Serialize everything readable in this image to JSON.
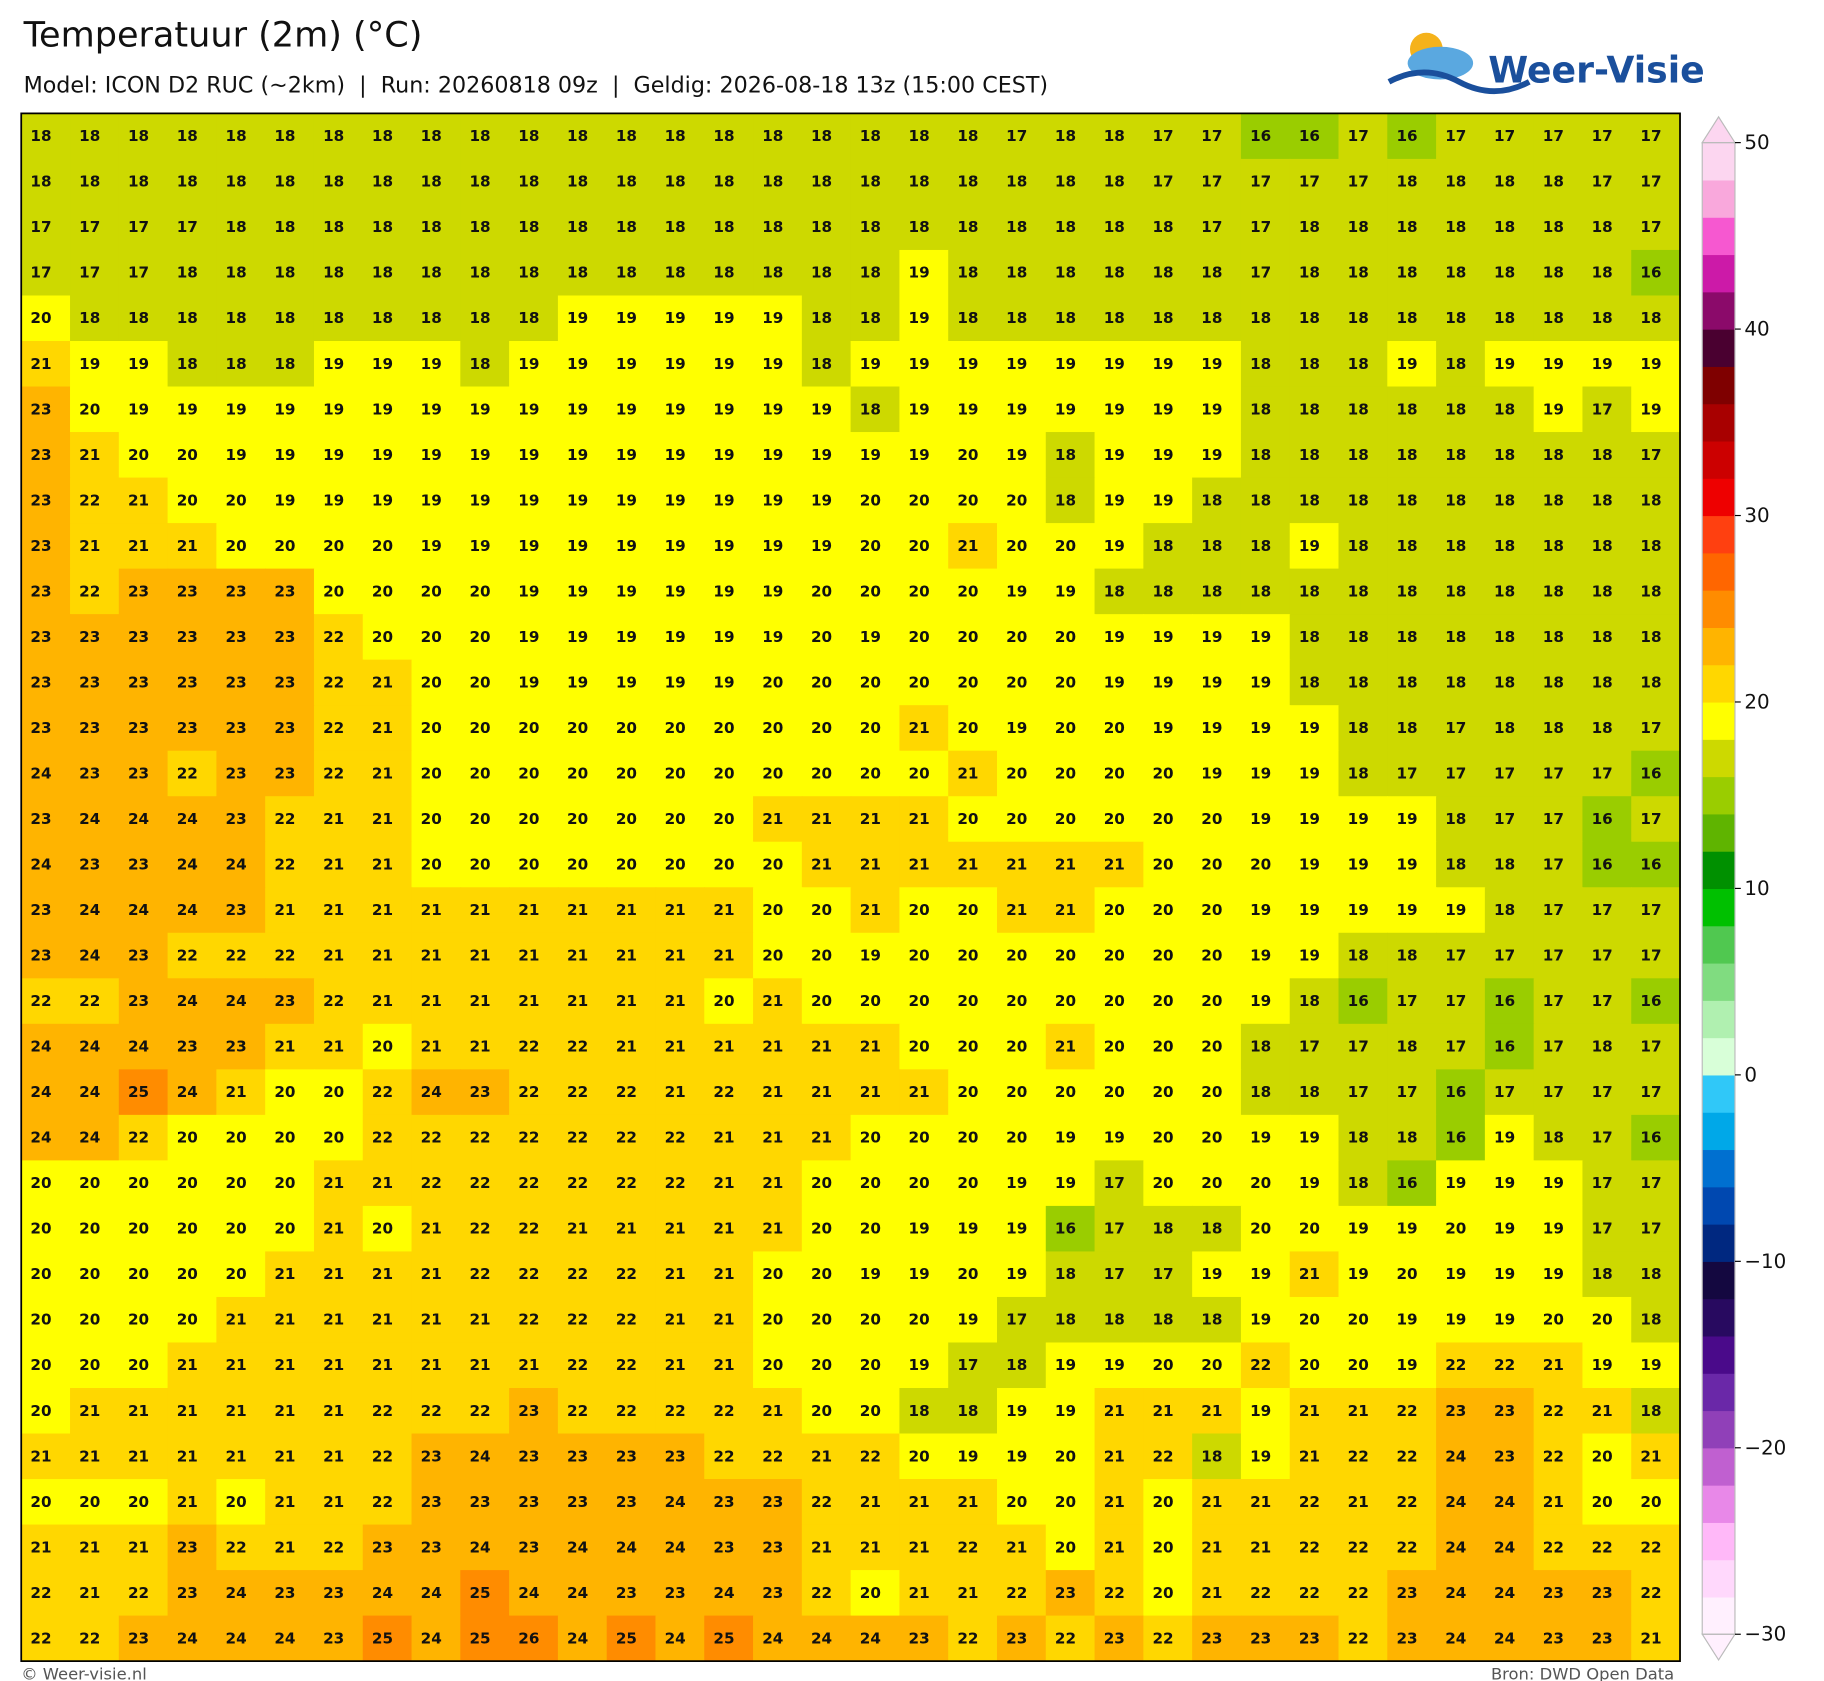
{
  "map": {
    "title": "Temperatuur (2m) (°C)",
    "subtitle": "Model: ICON D2 RUC (~2km)  |  Run: 20260818 09z  |  Geldig: 2026-08-18 13z (15:00 CEST)",
    "logo": "Weer-Visie",
    "footer_left": "© Weer-visie.nl",
    "footer_right": "Bron: DWD Open Data",
    "colorbar": {
      "ylim": [
        -30,
        50
      ],
      "yticks": [
        {
          "value": -30,
          "label": "−30"
        },
        {
          "value": -20,
          "label": "−20"
        },
        {
          "value": -10,
          "label": "−10"
        },
        0,
        10,
        20,
        30,
        40,
        50
      ],
      "colors": [
        "#fff0fe",
        "#ffd8fc",
        "#ffb8f8",
        "#e888e8",
        "#c060d0",
        "#9040b8",
        "#6a28a8",
        "#4a0a8a",
        "#280a60",
        "#140840",
        "#002880",
        "#0048b0",
        "#0070d0",
        "#00a8e8",
        "#30c8f8",
        "#d8ffd8",
        "#b0f0b0",
        "#80dc80",
        "#50c850",
        "#00c000",
        "#009000",
        "#5fb400",
        "#9acd00",
        "#cdd900",
        "#ffff00",
        "#ffd700",
        "#ffb400",
        "#ff8c00",
        "#ff6600",
        "#ff4010",
        "#ee0000",
        "#cc0000",
        "#a80000",
        "#7f0000",
        "#4a0030",
        "#8b0a6a",
        "#cc1aa8",
        "#f658d0",
        "#f9a8dc",
        "#fcd6f0"
      ]
    },
    "grid": [
      [
        18,
        18,
        18,
        18,
        18,
        18,
        18,
        18,
        18,
        18,
        18,
        18,
        18,
        18,
        18,
        18,
        18,
        18,
        18,
        18,
        17,
        18,
        18,
        17,
        17,
        16,
        16,
        17,
        16,
        17,
        17,
        17,
        17,
        17
      ],
      [
        18,
        18,
        18,
        18,
        18,
        18,
        18,
        18,
        18,
        18,
        18,
        18,
        18,
        18,
        18,
        18,
        18,
        18,
        18,
        18,
        18,
        18,
        18,
        17,
        17,
        17,
        17,
        17,
        18,
        18,
        18,
        18,
        17,
        17
      ],
      [
        17,
        17,
        17,
        17,
        18,
        18,
        18,
        18,
        18,
        18,
        18,
        18,
        18,
        18,
        18,
        18,
        18,
        18,
        18,
        18,
        18,
        18,
        18,
        18,
        17,
        17,
        18,
        18,
        18,
        18,
        18,
        18,
        18,
        17
      ],
      [
        17,
        17,
        17,
        18,
        18,
        18,
        18,
        18,
        18,
        18,
        18,
        18,
        18,
        18,
        18,
        18,
        18,
        18,
        19,
        18,
        18,
        18,
        18,
        18,
        18,
        17,
        18,
        18,
        18,
        18,
        18,
        18,
        18,
        16
      ],
      [
        20,
        18,
        18,
        18,
        18,
        18,
        18,
        18,
        18,
        18,
        18,
        19,
        19,
        19,
        19,
        19,
        18,
        18,
        19,
        18,
        18,
        18,
        18,
        18,
        18,
        18,
        18,
        18,
        18,
        18,
        18,
        18,
        18,
        18
      ],
      [
        21,
        19,
        19,
        18,
        18,
        18,
        19,
        19,
        19,
        18,
        19,
        19,
        19,
        19,
        19,
        19,
        18,
        19,
        19,
        19,
        19,
        19,
        19,
        19,
        19,
        18,
        18,
        18,
        19,
        18,
        19,
        19,
        19,
        19
      ],
      [
        23,
        20,
        19,
        19,
        19,
        19,
        19,
        19,
        19,
        19,
        19,
        19,
        19,
        19,
        19,
        19,
        19,
        18,
        19,
        19,
        19,
        19,
        19,
        19,
        19,
        18,
        18,
        18,
        18,
        18,
        18,
        19,
        17,
        19
      ],
      [
        23,
        21,
        20,
        20,
        19,
        19,
        19,
        19,
        19,
        19,
        19,
        19,
        19,
        19,
        19,
        19,
        19,
        19,
        19,
        20,
        19,
        18,
        19,
        19,
        19,
        18,
        18,
        18,
        18,
        18,
        18,
        18,
        18,
        17
      ],
      [
        23,
        22,
        21,
        20,
        20,
        19,
        19,
        19,
        19,
        19,
        19,
        19,
        19,
        19,
        19,
        19,
        19,
        20,
        20,
        20,
        20,
        18,
        19,
        19,
        18,
        18,
        18,
        18,
        18,
        18,
        18,
        18,
        18,
        18
      ],
      [
        23,
        21,
        21,
        21,
        20,
        20,
        20,
        20,
        19,
        19,
        19,
        19,
        19,
        19,
        19,
        19,
        19,
        20,
        20,
        21,
        20,
        20,
        19,
        18,
        18,
        18,
        19,
        18,
        18,
        18,
        18,
        18,
        18,
        18
      ],
      [
        23,
        22,
        23,
        23,
        23,
        23,
        20,
        20,
        20,
        20,
        19,
        19,
        19,
        19,
        19,
        19,
        20,
        20,
        20,
        20,
        19,
        19,
        18,
        18,
        18,
        18,
        18,
        18,
        18,
        18,
        18,
        18,
        18,
        18
      ],
      [
        23,
        23,
        23,
        23,
        23,
        23,
        22,
        20,
        20,
        20,
        19,
        19,
        19,
        19,
        19,
        19,
        20,
        19,
        20,
        20,
        20,
        20,
        19,
        19,
        19,
        19,
        18,
        18,
        18,
        18,
        18,
        18,
        18,
        18
      ],
      [
        23,
        23,
        23,
        23,
        23,
        23,
        22,
        21,
        20,
        20,
        19,
        19,
        19,
        19,
        19,
        20,
        20,
        20,
        20,
        20,
        20,
        20,
        19,
        19,
        19,
        19,
        18,
        18,
        18,
        18,
        18,
        18,
        18,
        18
      ],
      [
        23,
        23,
        23,
        23,
        23,
        23,
        22,
        21,
        20,
        20,
        20,
        20,
        20,
        20,
        20,
        20,
        20,
        20,
        21,
        20,
        19,
        20,
        20,
        19,
        19,
        19,
        19,
        18,
        18,
        17,
        18,
        18,
        18,
        17
      ],
      [
        24,
        23,
        23,
        22,
        23,
        23,
        22,
        21,
        20,
        20,
        20,
        20,
        20,
        20,
        20,
        20,
        20,
        20,
        20,
        21,
        20,
        20,
        20,
        20,
        19,
        19,
        19,
        18,
        17,
        17,
        17,
        17,
        17,
        16
      ],
      [
        23,
        24,
        24,
        24,
        23,
        22,
        21,
        21,
        20,
        20,
        20,
        20,
        20,
        20,
        20,
        21,
        21,
        21,
        21,
        20,
        20,
        20,
        20,
        20,
        20,
        19,
        19,
        19,
        19,
        18,
        17,
        17,
        16,
        17
      ],
      [
        24,
        23,
        23,
        24,
        24,
        22,
        21,
        21,
        20,
        20,
        20,
        20,
        20,
        20,
        20,
        20,
        21,
        21,
        21,
        21,
        21,
        21,
        21,
        20,
        20,
        20,
        19,
        19,
        19,
        18,
        18,
        17,
        16,
        16
      ],
      [
        23,
        24,
        24,
        24,
        23,
        21,
        21,
        21,
        21,
        21,
        21,
        21,
        21,
        21,
        21,
        20,
        20,
        21,
        20,
        20,
        21,
        21,
        20,
        20,
        20,
        19,
        19,
        19,
        19,
        19,
        18,
        17,
        17,
        17
      ],
      [
        23,
        24,
        23,
        22,
        22,
        22,
        21,
        21,
        21,
        21,
        21,
        21,
        21,
        21,
        21,
        20,
        20,
        19,
        20,
        20,
        20,
        20,
        20,
        20,
        20,
        19,
        19,
        18,
        18,
        17,
        17,
        17,
        17,
        17
      ],
      [
        22,
        22,
        23,
        24,
        24,
        23,
        22,
        21,
        21,
        21,
        21,
        21,
        21,
        21,
        20,
        21,
        20,
        20,
        20,
        20,
        20,
        20,
        20,
        20,
        20,
        19,
        18,
        16,
        17,
        17,
        16,
        17,
        17,
        16
      ],
      [
        24,
        24,
        24,
        23,
        23,
        21,
        21,
        20,
        21,
        21,
        22,
        22,
        21,
        21,
        21,
        21,
        21,
        21,
        20,
        20,
        20,
        21,
        20,
        20,
        20,
        18,
        17,
        17,
        18,
        17,
        16,
        17,
        18,
        17
      ],
      [
        24,
        24,
        25,
        24,
        21,
        20,
        20,
        22,
        24,
        23,
        22,
        22,
        22,
        21,
        22,
        21,
        21,
        21,
        21,
        20,
        20,
        20,
        20,
        20,
        20,
        18,
        18,
        17,
        17,
        16,
        17,
        17,
        17,
        17
      ],
      [
        24,
        24,
        22,
        20,
        20,
        20,
        20,
        22,
        22,
        22,
        22,
        22,
        22,
        22,
        21,
        21,
        21,
        20,
        20,
        20,
        20,
        19,
        19,
        20,
        20,
        19,
        19,
        18,
        18,
        16,
        19,
        18,
        17,
        16
      ],
      [
        20,
        20,
        20,
        20,
        20,
        20,
        21,
        21,
        22,
        22,
        22,
        22,
        22,
        22,
        21,
        21,
        20,
        20,
        20,
        20,
        19,
        19,
        17,
        20,
        20,
        20,
        19,
        18,
        16,
        19,
        19,
        19,
        17,
        17
      ],
      [
        20,
        20,
        20,
        20,
        20,
        20,
        21,
        20,
        21,
        22,
        22,
        21,
        21,
        21,
        21,
        21,
        20,
        20,
        19,
        19,
        19,
        16,
        17,
        18,
        18,
        20,
        20,
        19,
        19,
        20,
        19,
        19,
        17,
        17
      ],
      [
        20,
        20,
        20,
        20,
        20,
        21,
        21,
        21,
        21,
        22,
        22,
        22,
        22,
        21,
        21,
        20,
        20,
        19,
        19,
        20,
        19,
        18,
        17,
        17,
        19,
        19,
        21,
        19,
        20,
        19,
        19,
        19,
        18,
        18
      ],
      [
        20,
        20,
        20,
        20,
        21,
        21,
        21,
        21,
        21,
        21,
        22,
        22,
        22,
        21,
        21,
        20,
        20,
        20,
        20,
        19,
        17,
        18,
        18,
        18,
        18,
        19,
        20,
        20,
        19,
        19,
        19,
        20,
        20,
        18
      ],
      [
        20,
        20,
        20,
        21,
        21,
        21,
        21,
        21,
        21,
        21,
        21,
        22,
        22,
        21,
        21,
        20,
        20,
        20,
        19,
        17,
        18,
        19,
        19,
        20,
        20,
        22,
        20,
        20,
        19,
        22,
        22,
        21,
        19,
        19
      ],
      [
        20,
        21,
        21,
        21,
        21,
        21,
        21,
        22,
        22,
        22,
        23,
        22,
        22,
        22,
        22,
        21,
        20,
        20,
        18,
        18,
        19,
        19,
        21,
        21,
        21,
        19,
        21,
        21,
        22,
        23,
        23,
        22,
        21,
        18
      ],
      [
        21,
        21,
        21,
        21,
        21,
        21,
        21,
        22,
        23,
        24,
        23,
        23,
        23,
        23,
        22,
        22,
        21,
        22,
        20,
        19,
        19,
        20,
        21,
        22,
        18,
        19,
        21,
        22,
        22,
        24,
        23,
        22,
        20,
        21
      ],
      [
        20,
        20,
        20,
        21,
        20,
        21,
        21,
        22,
        23,
        23,
        23,
        23,
        23,
        24,
        23,
        23,
        22,
        21,
        21,
        21,
        20,
        20,
        21,
        20,
        21,
        21,
        22,
        21,
        22,
        24,
        24,
        21,
        20,
        20
      ],
      [
        21,
        21,
        21,
        23,
        22,
        21,
        22,
        23,
        23,
        24,
        23,
        24,
        24,
        24,
        23,
        23,
        21,
        21,
        21,
        22,
        21,
        20,
        21,
        20,
        21,
        21,
        22,
        22,
        22,
        24,
        24,
        22,
        22,
        22
      ],
      [
        22,
        21,
        22,
        23,
        24,
        23,
        23,
        24,
        24,
        25,
        24,
        24,
        23,
        23,
        24,
        23,
        22,
        20,
        21,
        21,
        22,
        23,
        22,
        20,
        21,
        22,
        22,
        22,
        23,
        24,
        24,
        23,
        23,
        22
      ],
      [
        22,
        22,
        23,
        24,
        24,
        24,
        23,
        25,
        24,
        25,
        26,
        24,
        25,
        24,
        25,
        24,
        24,
        24,
        23,
        22,
        23,
        22,
        23,
        22,
        23,
        23,
        23,
        22,
        23,
        24,
        24,
        23,
        23,
        21
      ]
    ]
  }
}
